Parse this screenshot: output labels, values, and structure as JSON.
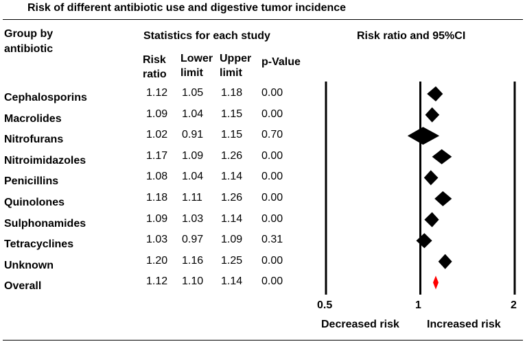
{
  "chart_data": {
    "type": "forest",
    "title": "Risk of different antibiotic use and digestive tumor incidence",
    "headers": {
      "group": "Group by antibiotic",
      "group_line1": "Group by",
      "group_line2": "antibiotic",
      "stats": "Statistics for each study",
      "risk_ratio": [
        "Risk",
        "ratio"
      ],
      "lower_limit": [
        "Lower",
        "limit"
      ],
      "upper_limit": [
        "Upper",
        "limit"
      ],
      "p_value": "p-Value",
      "plot": "Risk ratio and 95%CI"
    },
    "rows": [
      {
        "group": "Cephalosporins",
        "rr": "1.12",
        "lower": "1.05",
        "upper": "1.18",
        "p": "0.00",
        "rr_v": 1.12,
        "lo_v": 1.05,
        "up_v": 1.18,
        "overall": false
      },
      {
        "group": "Macrolides",
        "rr": "1.09",
        "lower": "1.04",
        "upper": "1.15",
        "p": "0.00",
        "rr_v": 1.09,
        "lo_v": 1.04,
        "up_v": 1.15,
        "overall": false
      },
      {
        "group": "Nitrofurans",
        "rr": "1.02",
        "lower": "0.91",
        "upper": "1.15",
        "p": "0.70",
        "rr_v": 1.02,
        "lo_v": 0.91,
        "up_v": 1.15,
        "overall": false
      },
      {
        "group": "Nitroimidazoles",
        "rr": "1.17",
        "lower": "1.09",
        "upper": "1.26",
        "p": "0.00",
        "rr_v": 1.17,
        "lo_v": 1.09,
        "up_v": 1.26,
        "overall": false
      },
      {
        "group": "Penicillins",
        "rr": "1.08",
        "lower": "1.04",
        "upper": "1.14",
        "p": "0.00",
        "rr_v": 1.08,
        "lo_v": 1.04,
        "up_v": 1.14,
        "overall": false
      },
      {
        "group": "Quinolones",
        "rr": "1.18",
        "lower": "1.11",
        "upper": "1.26",
        "p": "0.00",
        "rr_v": 1.18,
        "lo_v": 1.11,
        "up_v": 1.26,
        "overall": false
      },
      {
        "group": "Sulphonamides",
        "rr": "1.09",
        "lower": "1.03",
        "upper": "1.14",
        "p": "0.00",
        "rr_v": 1.09,
        "lo_v": 1.03,
        "up_v": 1.14,
        "overall": false
      },
      {
        "group": "Tetracyclines",
        "rr": "1.03",
        "lower": "0.97",
        "upper": "1.09",
        "p": "0.31",
        "rr_v": 1.03,
        "lo_v": 0.97,
        "up_v": 1.09,
        "overall": false
      },
      {
        "group": "Unknown",
        "rr": "1.20",
        "lower": "1.16",
        "upper": "1.25",
        "p": "0.00",
        "rr_v": 1.2,
        "lo_v": 1.16,
        "up_v": 1.25,
        "overall": false
      },
      {
        "group": "Overall",
        "rr": "1.12",
        "lower": "1.10",
        "upper": "1.14",
        "p": "0.00",
        "rr_v": 1.12,
        "lo_v": 1.1,
        "up_v": 1.14,
        "overall": true
      }
    ],
    "x_scale": "log",
    "x_ticks": [
      0.5,
      1,
      2
    ],
    "x_tick_labels": [
      "0.5",
      "1",
      "2"
    ],
    "xlim": [
      0.5,
      2
    ],
    "x_left_label": "Decreased risk",
    "x_right_label": "Increased risk",
    "colors": {
      "study_marker": "#000000",
      "overall_marker": "#ff0000",
      "axis": "#000000"
    }
  }
}
